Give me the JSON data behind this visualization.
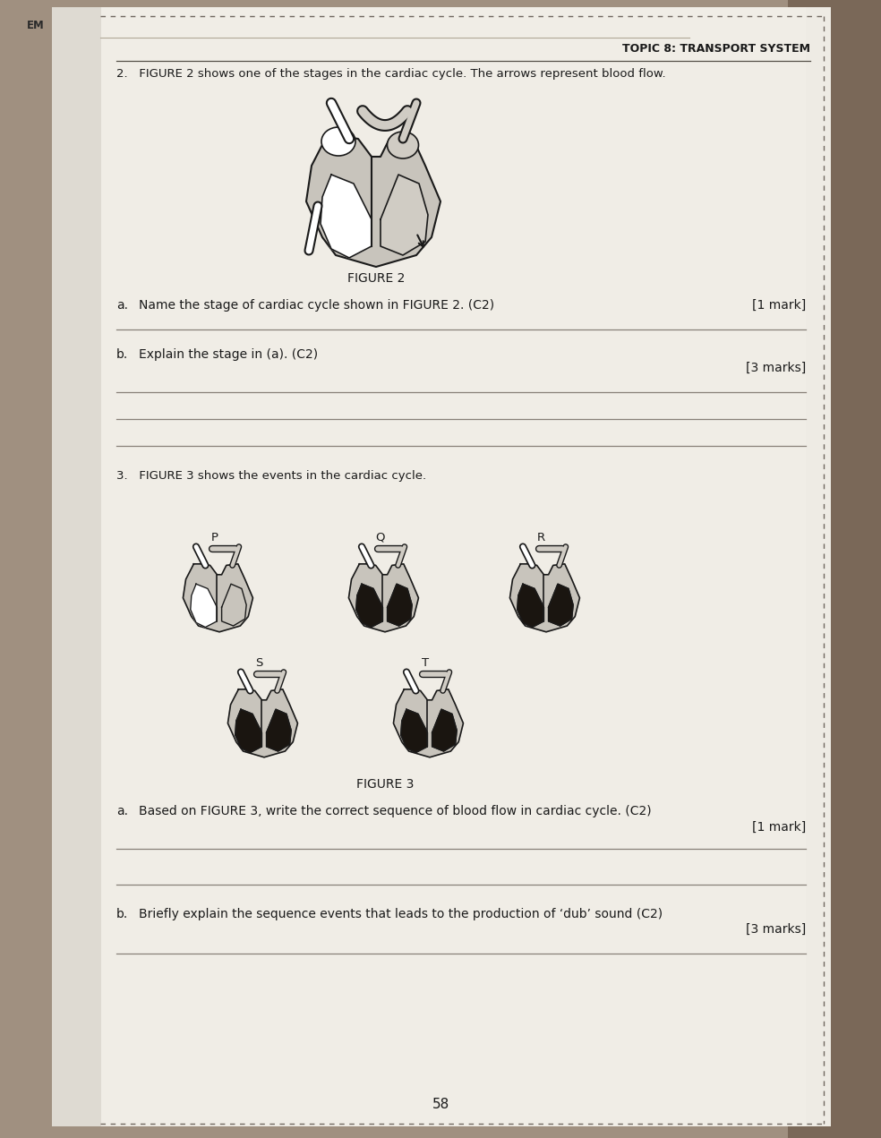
{
  "bg_color_left": "#9a9080",
  "bg_color_right": "#7a7068",
  "paper_color": "#e8e4dc",
  "paper_inner": "#eeebe4",
  "text_dark": "#1a1a1a",
  "text_medium": "#2a2a2a",
  "line_color": "#888078",
  "dash_color": "#706860",
  "topic_header": "TOPIC 8: TRANSPORT SYSTEM",
  "q2_intro": "2.   FIGURE 2 shows one of the stages in the cardiac cycle. The arrows represent blood flow.",
  "figure2_label": "FIGURE 2",
  "q2a_label": "a.",
  "q2a_text": "Name the stage of cardiac cycle shown in FIGURE 2. (C2)",
  "q2a_mark": "[1 mark]",
  "q2b_label": "b.",
  "q2b_text": "Explain the stage in (a). (C2)",
  "q2b_mark": "[3 marks]",
  "q3_intro": "3.   FIGURE 3 shows the events in the cardiac cycle.",
  "figure3_label": "FIGURE 3",
  "q3a_label": "a.",
  "q3a_text": "Based on FIGURE 3, write the correct sequence of blood flow in cardiac cycle. (C2)",
  "q3a_mark": "[1 mark]",
  "q3b_label": "b.",
  "q3b_text": "Briefly explain the sequence events that leads to the production of ‘dub’ sound (C2)",
  "q3b_mark": "[3 marks]",
  "page_num": "58",
  "em_label": "EM",
  "heart_labels": [
    "P",
    "Q",
    "R",
    "S",
    "T"
  ]
}
